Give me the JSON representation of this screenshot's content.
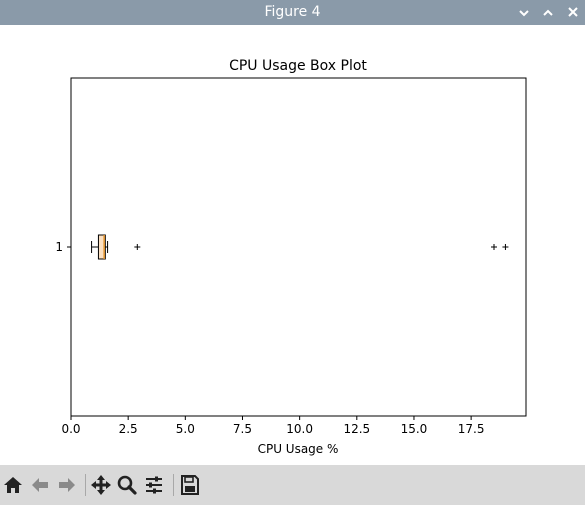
{
  "window": {
    "title": "Figure 4",
    "controls": [
      "minimize-icon",
      "maximize-icon",
      "close-icon"
    ]
  },
  "toolbar": {
    "buttons": [
      "home-icon",
      "back-icon",
      "forward-icon",
      "pan-icon",
      "zoom-icon",
      "configure-subplots-icon",
      "save-icon"
    ]
  },
  "colors": {
    "titlebar": "#8a9aa9",
    "box_fill": "#fbe0c2",
    "median": "#e3922b",
    "toolbar": "#d9d9d9"
  },
  "chart_data": {
    "type": "boxplot",
    "orientation": "horizontal",
    "title": "CPU Usage Box Plot",
    "xlabel": "CPU Usage %",
    "ylabel": "",
    "xlim": [
      0,
      19.9
    ],
    "xticks": [
      "0.0",
      "2.5",
      "5.0",
      "7.5",
      "10.0",
      "12.5",
      "15.0",
      "17.5"
    ],
    "yticks": [
      "1"
    ],
    "grid": false,
    "boxes": [
      {
        "label": "1",
        "whisker_low": 0.9,
        "q1": 1.2,
        "median": 1.45,
        "q3": 1.5,
        "whisker_high": 1.6,
        "outliers": [
          2.9,
          18.5,
          19.0
        ]
      }
    ]
  }
}
